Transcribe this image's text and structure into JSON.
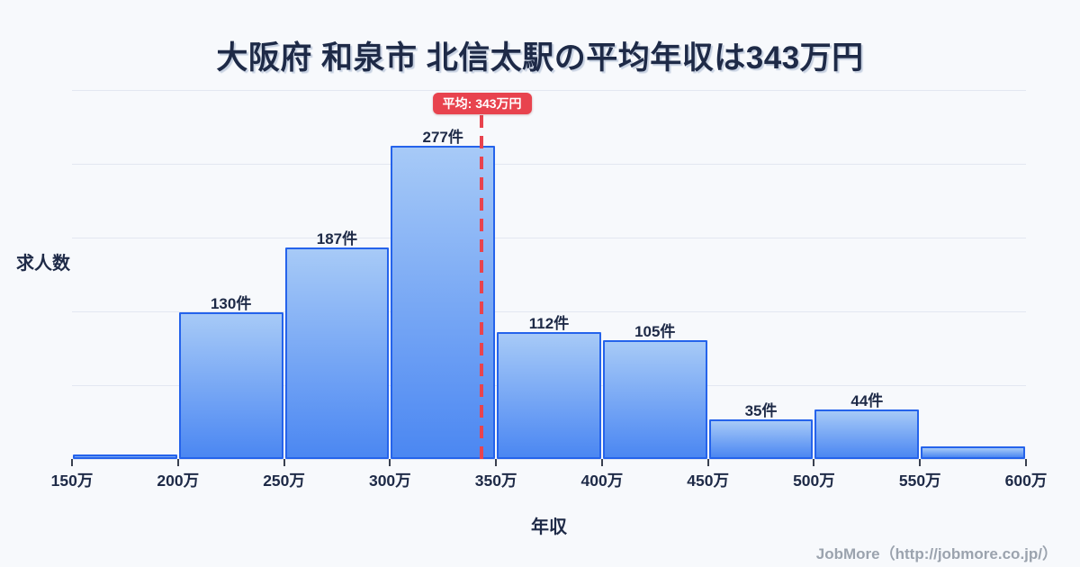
{
  "page": {
    "background": "#f7f9fc",
    "footer_credit": "JobMore（http://jobmore.co.jp/）"
  },
  "chart_data": {
    "type": "bar",
    "subtype": "histogram",
    "title": "大阪府 和泉市 北信太駅の平均年収は343万円",
    "xlabel": "年収",
    "ylabel": "求人数",
    "bin_edge_labels": [
      "150万",
      "200万",
      "250万",
      "300万",
      "350万",
      "400万",
      "450万",
      "500万",
      "550万",
      "600万"
    ],
    "bin_edges_man_yen": [
      150,
      200,
      250,
      300,
      350,
      400,
      450,
      500,
      550,
      600
    ],
    "values": [
      4,
      130,
      187,
      277,
      112,
      105,
      35,
      44,
      11
    ],
    "bar_labels": [
      "",
      "130件",
      "187件",
      "277件",
      "112件",
      "105件",
      "35件",
      "44件",
      ""
    ],
    "x_range_man_yen": [
      150,
      600
    ],
    "ylim": [
      0,
      326
    ],
    "grid": true,
    "gridline_count": 6,
    "legend": "none",
    "mean": {
      "label": "平均: 343万円",
      "value_man_yen": 343
    },
    "colors": {
      "background": "#f7f9fc",
      "title_text": "#1e2a47",
      "grid_line": "#e3e7f1",
      "bar_fill_top": "#a7caf7",
      "bar_fill_bottom": "#4b87f2",
      "bar_border": "#2563eb",
      "mean_line": "#e8434e",
      "footer_text": "#9ba3ae"
    }
  }
}
